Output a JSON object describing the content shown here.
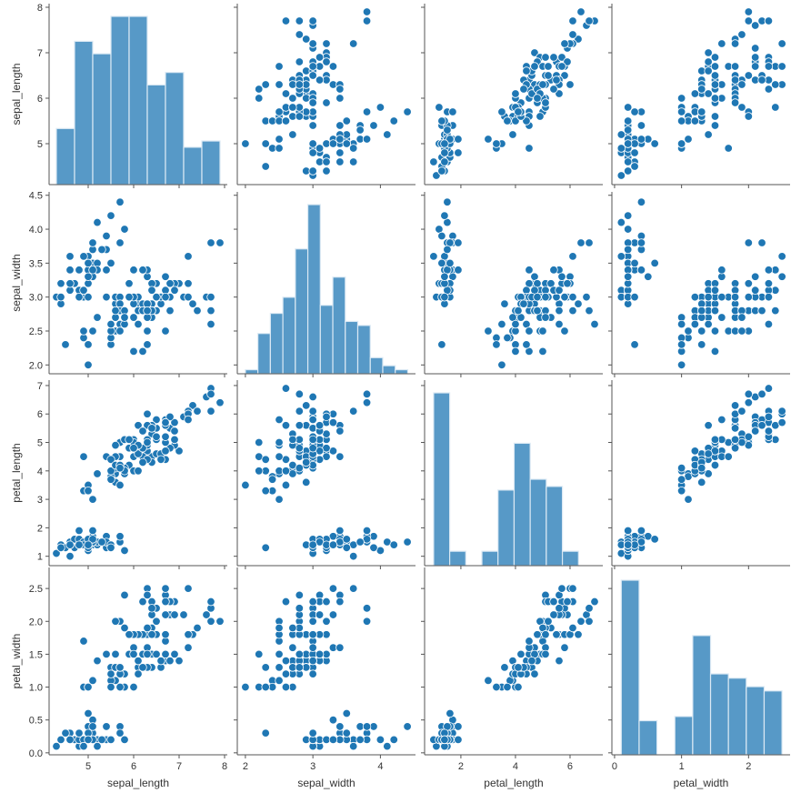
{
  "chart_data": {
    "type": "pairplot",
    "variables": [
      "sepal_length",
      "sepal_width",
      "petal_length",
      "petal_width"
    ],
    "colors": {
      "point": "#1f77b4",
      "bar": "#5799c7",
      "bar_edge": "#dbe9f4",
      "axis": "#555555",
      "text": "#333333",
      "point_edge": "#ffffff"
    },
    "grid": false,
    "axes": {
      "sepal_length": {
        "label": "sepal_length",
        "range": [
          4.14,
          8.06
        ],
        "ticks": [
          5,
          6,
          7,
          8
        ],
        "y_ticks": [
          5,
          6,
          7,
          8
        ],
        "tick_labels": [
          "5",
          "6",
          "7",
          "8"
        ]
      },
      "sepal_width": {
        "label": "sepal_width",
        "range": [
          1.88,
          4.52
        ],
        "ticks": [
          2,
          3,
          4
        ],
        "tick_labels": [
          "2",
          "3",
          "4"
        ],
        "y_ticks": [
          2.0,
          2.5,
          3.0,
          3.5,
          4.0,
          4.5
        ],
        "y_tick_labels": [
          "2.0",
          "2.5",
          "3.0",
          "3.5",
          "4.0",
          "4.5"
        ]
      },
      "petal_length": {
        "label": "petal_length",
        "range": [
          0.67,
          7.2
        ],
        "ticks": [
          2,
          4,
          6
        ],
        "tick_labels": [
          "2",
          "4",
          "6"
        ],
        "y_ticks": [
          1,
          2,
          3,
          4,
          5,
          6,
          7
        ],
        "y_tick_labels": [
          "1",
          "2",
          "3",
          "4",
          "5",
          "6",
          "7"
        ]
      },
      "petal_width": {
        "label": "petal_width",
        "range": [
          -0.04,
          2.62
        ],
        "ticks": [
          0,
          1,
          2
        ],
        "tick_labels": [
          "0",
          "1",
          "2"
        ],
        "y_ticks": [
          0.0,
          0.5,
          1.0,
          1.5,
          2.0,
          2.5
        ],
        "y_tick_labels": [
          "0.0",
          "0.5",
          "1.0",
          "1.5",
          "2.0",
          "2.5"
        ]
      }
    },
    "histograms": {
      "sepal_length": {
        "bin_start": 4.3,
        "bin_width": 0.4,
        "counts": [
          9,
          23,
          21,
          27,
          27,
          16,
          18,
          6,
          7
        ]
      },
      "sepal_width": {
        "bin_start": 2.0,
        "bin_width": 0.185,
        "counts": [
          1,
          10,
          15,
          19,
          31,
          42,
          17,
          24,
          13,
          12,
          4,
          2,
          1
        ]
      },
      "petal_length": {
        "bin_start": 1.0,
        "bin_width": 0.59,
        "counts": [
          48,
          4,
          0,
          4,
          21,
          34,
          24,
          22,
          4
        ]
      },
      "petal_width": {
        "bin_start": 0.1,
        "bin_width": 0.2666,
        "counts": [
          41,
          8,
          0,
          9,
          28,
          19,
          18,
          16,
          15
        ]
      }
    },
    "rows": {
      "sepal_length": [
        5.1,
        4.9,
        4.7,
        4.6,
        5.0,
        5.4,
        4.6,
        5.0,
        4.4,
        4.9,
        5.4,
        4.8,
        4.8,
        4.3,
        5.8,
        5.7,
        5.4,
        5.1,
        5.7,
        5.1,
        5.4,
        5.1,
        4.6,
        5.1,
        4.8,
        5.0,
        5.0,
        5.2,
        5.2,
        4.7,
        4.8,
        5.4,
        5.2,
        5.5,
        4.9,
        5.0,
        5.5,
        4.9,
        4.4,
        5.1,
        5.0,
        4.5,
        4.4,
        5.0,
        5.1,
        4.8,
        5.1,
        4.6,
        5.3,
        5.0,
        7.0,
        6.4,
        6.9,
        5.5,
        6.5,
        5.7,
        6.3,
        4.9,
        6.6,
        5.2,
        5.0,
        5.9,
        6.0,
        6.1,
        5.6,
        6.7,
        5.6,
        5.8,
        6.2,
        5.6,
        5.9,
        6.1,
        6.3,
        6.1,
        6.4,
        6.6,
        6.8,
        6.7,
        6.0,
        5.7,
        5.5,
        5.5,
        5.8,
        6.0,
        5.4,
        6.0,
        6.7,
        6.3,
        5.6,
        5.5,
        5.5,
        6.1,
        5.8,
        5.0,
        5.6,
        5.7,
        5.7,
        6.2,
        5.1,
        5.7,
        6.3,
        5.8,
        7.1,
        6.3,
        6.5,
        7.6,
        4.9,
        7.3,
        6.7,
        7.2,
        6.5,
        6.4,
        6.8,
        5.7,
        5.8,
        6.4,
        6.5,
        7.7,
        7.7,
        6.0,
        6.9,
        5.6,
        7.7,
        6.3,
        6.7,
        7.2,
        6.2,
        6.1,
        6.4,
        7.2,
        7.4,
        7.9,
        6.4,
        6.3,
        6.1,
        7.7,
        6.3,
        6.4,
        6.0,
        6.9,
        6.7,
        6.9,
        5.8,
        6.8,
        6.7,
        6.7,
        6.3,
        6.5,
        6.2,
        5.9
      ],
      "sepal_width": [
        3.5,
        3.0,
        3.2,
        3.1,
        3.6,
        3.9,
        3.4,
        3.4,
        2.9,
        3.1,
        3.7,
        3.4,
        3.0,
        3.0,
        4.0,
        4.4,
        3.9,
        3.5,
        3.8,
        3.8,
        3.4,
        3.7,
        3.6,
        3.3,
        3.4,
        3.0,
        3.4,
        3.5,
        3.4,
        3.2,
        3.1,
        3.4,
        4.1,
        4.2,
        3.1,
        3.2,
        3.5,
        3.6,
        3.0,
        3.4,
        3.5,
        2.3,
        3.2,
        3.5,
        3.8,
        3.0,
        3.8,
        3.2,
        3.7,
        3.3,
        3.2,
        3.2,
        3.1,
        2.3,
        2.8,
        2.8,
        3.3,
        2.4,
        2.9,
        2.7,
        2.0,
        3.0,
        2.2,
        2.9,
        2.9,
        3.1,
        3.0,
        2.7,
        2.2,
        2.5,
        3.2,
        2.8,
        2.5,
        2.8,
        2.9,
        3.0,
        2.8,
        3.0,
        2.9,
        2.6,
        2.4,
        2.4,
        2.7,
        2.7,
        3.0,
        3.4,
        3.1,
        2.3,
        3.0,
        2.5,
        2.6,
        3.0,
        2.6,
        2.3,
        2.7,
        3.0,
        2.9,
        2.9,
        2.5,
        2.8,
        3.3,
        2.7,
        3.0,
        2.9,
        3.0,
        3.0,
        2.5,
        2.9,
        2.5,
        3.6,
        3.2,
        2.7,
        3.0,
        2.5,
        2.8,
        3.2,
        3.0,
        3.8,
        2.6,
        2.2,
        3.2,
        2.8,
        2.8,
        2.7,
        3.3,
        3.2,
        2.8,
        3.0,
        2.8,
        3.0,
        2.8,
        3.8,
        2.8,
        2.8,
        2.6,
        3.0,
        3.4,
        3.1,
        3.0,
        3.1,
        3.1,
        3.1,
        2.7,
        3.2,
        3.3,
        3.0,
        2.5,
        3.0,
        3.4,
        3.0
      ],
      "petal_length": [
        1.4,
        1.4,
        1.3,
        1.5,
        1.4,
        1.7,
        1.4,
        1.5,
        1.4,
        1.5,
        1.5,
        1.6,
        1.4,
        1.1,
        1.2,
        1.5,
        1.3,
        1.4,
        1.7,
        1.5,
        1.7,
        1.5,
        1.0,
        1.7,
        1.9,
        1.6,
        1.6,
        1.5,
        1.4,
        1.6,
        1.6,
        1.5,
        1.5,
        1.4,
        1.5,
        1.2,
        1.3,
        1.4,
        1.3,
        1.5,
        1.3,
        1.3,
        1.3,
        1.6,
        1.9,
        1.4,
        1.6,
        1.4,
        1.5,
        1.4,
        4.7,
        4.5,
        4.9,
        4.0,
        4.6,
        4.5,
        4.7,
        3.3,
        4.6,
        3.9,
        3.5,
        4.2,
        4.0,
        4.7,
        3.6,
        4.4,
        4.5,
        4.1,
        4.5,
        3.9,
        4.8,
        4.0,
        4.9,
        4.7,
        4.3,
        4.4,
        4.8,
        5.0,
        4.5,
        3.5,
        3.8,
        3.7,
        3.9,
        5.1,
        4.5,
        4.5,
        4.7,
        4.4,
        4.1,
        4.0,
        4.4,
        4.6,
        4.0,
        3.3,
        4.2,
        4.2,
        4.2,
        4.3,
        3.0,
        4.1,
        6.0,
        5.1,
        5.9,
        5.6,
        5.8,
        6.6,
        4.5,
        6.3,
        5.8,
        6.1,
        5.1,
        5.3,
        5.5,
        5.0,
        5.1,
        5.3,
        5.5,
        6.7,
        6.9,
        5.0,
        5.7,
        4.9,
        6.7,
        4.9,
        5.7,
        6.0,
        4.8,
        4.9,
        5.6,
        5.8,
        6.1,
        6.4,
        5.6,
        5.1,
        5.6,
        6.1,
        5.6,
        5.5,
        4.8,
        5.4,
        5.6,
        5.1,
        5.1,
        5.9,
        5.7,
        5.2,
        5.0,
        5.2,
        5.4,
        5.1
      ],
      "petal_width": [
        0.2,
        0.2,
        0.2,
        0.2,
        0.2,
        0.4,
        0.3,
        0.2,
        0.2,
        0.1,
        0.2,
        0.2,
        0.1,
        0.1,
        0.2,
        0.4,
        0.4,
        0.3,
        0.3,
        0.3,
        0.2,
        0.4,
        0.2,
        0.5,
        0.2,
        0.2,
        0.4,
        0.2,
        0.2,
        0.2,
        0.2,
        0.4,
        0.1,
        0.2,
        0.2,
        0.2,
        0.2,
        0.1,
        0.2,
        0.2,
        0.3,
        0.3,
        0.2,
        0.6,
        0.4,
        0.3,
        0.2,
        0.2,
        0.2,
        0.2,
        1.4,
        1.5,
        1.5,
        1.3,
        1.5,
        1.3,
        1.6,
        1.0,
        1.3,
        1.4,
        1.0,
        1.5,
        1.0,
        1.4,
        1.3,
        1.4,
        1.5,
        1.0,
        1.5,
        1.1,
        1.8,
        1.3,
        1.5,
        1.2,
        1.3,
        1.4,
        1.4,
        1.7,
        1.5,
        1.0,
        1.1,
        1.0,
        1.2,
        1.6,
        1.5,
        1.6,
        1.5,
        1.3,
        1.3,
        1.3,
        1.2,
        1.4,
        1.2,
        1.0,
        1.3,
        1.2,
        1.3,
        1.3,
        1.1,
        1.3,
        2.5,
        1.9,
        2.1,
        1.8,
        2.2,
        2.1,
        1.7,
        1.8,
        1.8,
        2.5,
        2.0,
        1.9,
        2.1,
        2.0,
        2.4,
        2.3,
        1.8,
        2.2,
        2.3,
        1.5,
        2.3,
        2.0,
        2.0,
        1.8,
        2.1,
        1.8,
        1.8,
        1.8,
        2.1,
        1.6,
        1.9,
        2.0,
        2.2,
        1.5,
        1.4,
        2.3,
        2.4,
        1.8,
        1.8,
        2.1,
        2.4,
        2.3,
        1.9,
        2.3,
        2.5,
        2.3,
        1.9,
        2.0,
        2.3,
        1.8
      ]
    }
  }
}
